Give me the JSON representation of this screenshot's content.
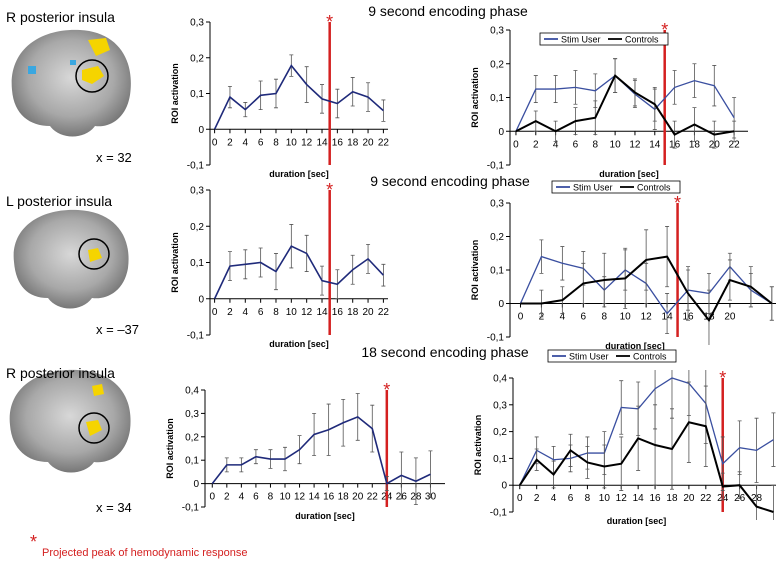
{
  "peak_marker": "*",
  "footnote": "Projected peak of hemodynamic response",
  "panels": [
    {
      "region": "R posterior insula",
      "coord": "x = 32"
    },
    {
      "region": "L posterior insula",
      "coord": "x = –37"
    },
    {
      "region": "R posterior insula",
      "coord": "x = 34"
    }
  ],
  "chart_data": [
    {
      "type": "line",
      "title": "9 second encoding phase",
      "xlabel": "duration [sec]",
      "ylabel": "ROI activation",
      "color": "#1f2a7a",
      "x": [
        0,
        2,
        4,
        6,
        8,
        10,
        12,
        14,
        16,
        18,
        20,
        22
      ],
      "values": [
        0,
        0.09,
        0.055,
        0.095,
        0.1,
        0.178,
        0.125,
        0.085,
        0.072,
        0.105,
        0.09,
        0.052
      ],
      "errors": [
        0,
        0.03,
        0.02,
        0.04,
        0.04,
        0.03,
        0.05,
        0.04,
        0.04,
        0.04,
        0.04,
        0.03
      ],
      "xlim": [
        -0.6,
        22.6
      ],
      "xticks": [
        0,
        2,
        4,
        6,
        8,
        10,
        12,
        14,
        16,
        18,
        20,
        22
      ],
      "ylim": [
        -0.1,
        0.3
      ],
      "yticks": [
        {
          "value": -0.1,
          "label": "-0,1"
        },
        0,
        {
          "value": 0.1,
          "label": "0,1"
        },
        {
          "value": 0.2,
          "label": "0,2"
        },
        {
          "value": 0.3,
          "label": "0,3"
        }
      ],
      "peak": 15
    },
    {
      "type": "line",
      "xlabel": "duration [sec]",
      "ylabel": "ROI activation",
      "legend": "top",
      "x": [
        0,
        2,
        4,
        6,
        8,
        10,
        12,
        14,
        16,
        18,
        20,
        22
      ],
      "series": [
        {
          "name": "Stim User",
          "color": "#3a4fa0",
          "values": [
            0,
            0.125,
            0.125,
            0.13,
            0.12,
            0.165,
            0.11,
            0.065,
            0.13,
            0.15,
            0.135,
            0.04
          ],
          "errors": [
            0,
            0.04,
            0.04,
            0.05,
            0.05,
            0.05,
            0.04,
            0.06,
            0.05,
            0.05,
            0.06,
            0.06
          ]
        },
        {
          "name": "Controls",
          "color": "#000000",
          "values": [
            0,
            0.03,
            0,
            0.03,
            0.04,
            0.165,
            0.115,
            0.08,
            -0.01,
            0.02,
            -0.01,
            0
          ],
          "errors": [
            0,
            0.03,
            0.03,
            0.04,
            0.05,
            0.05,
            0.04,
            0.05,
            0.04,
            0.05,
            0.04,
            0.03
          ]
        }
      ],
      "xlim": [
        -0.6,
        23.4
      ],
      "xticks": [
        0,
        2,
        4,
        6,
        8,
        10,
        12,
        14,
        16,
        18,
        20,
        22
      ],
      "ylim": [
        -0.1,
        0.3
      ],
      "yticks": [
        {
          "value": -0.1,
          "label": "-0,1"
        },
        0,
        {
          "value": 0.1,
          "label": "0,1"
        },
        {
          "value": 0.2,
          "label": "0,2"
        },
        {
          "value": 0.3,
          "label": "0,3"
        }
      ],
      "peak": 15
    },
    {
      "type": "line",
      "title": "9 second encoding phase",
      "xlabel": "duration [sec]",
      "ylabel": "ROI activation",
      "color": "#1f2a7a",
      "x": [
        0,
        2,
        4,
        6,
        8,
        10,
        12,
        14,
        16,
        18,
        20,
        22
      ],
      "values": [
        0,
        0.09,
        0.095,
        0.1,
        0.075,
        0.145,
        0.125,
        0.05,
        0.04,
        0.08,
        0.11,
        0.065
      ],
      "errors": [
        0,
        0.04,
        0.04,
        0.04,
        0.05,
        0.06,
        0.05,
        0.04,
        0.04,
        0.04,
        0.04,
        0.03
      ],
      "xlim": [
        -0.6,
        22.6
      ],
      "xticks": [
        0,
        2,
        4,
        6,
        8,
        10,
        12,
        14,
        16,
        18,
        20,
        22
      ],
      "ylim": [
        -0.1,
        0.3
      ],
      "yticks": [
        {
          "value": -0.1,
          "label": "-0,1"
        },
        0,
        {
          "value": 0.1,
          "label": "0,1"
        },
        {
          "value": 0.2,
          "label": "0,2"
        },
        {
          "value": 0.3,
          "label": "0,3"
        }
      ],
      "peak": 15
    },
    {
      "type": "line",
      "xlabel": "duration [sec]",
      "ylabel": "ROI activation",
      "legend": "top",
      "x": [
        0,
        2,
        4,
        6,
        8,
        10,
        12,
        14,
        16,
        18,
        20,
        22,
        24
      ],
      "series": [
        {
          "name": "Stim User",
          "color": "#3a4fa0",
          "values": [
            0,
            0.14,
            0.12,
            0.105,
            0.04,
            0.1,
            0.06,
            -0.03,
            0.04,
            0.03,
            0.11,
            0.04,
            0
          ],
          "errors": [
            0,
            0.05,
            0.05,
            0.05,
            0.04,
            0.06,
            0.06,
            0.06,
            0.06,
            0.06,
            0.04,
            0.05,
            0.05
          ]
        },
        {
          "name": "Controls",
          "color": "#000000",
          "values": [
            0,
            0,
            0.01,
            0.06,
            0.07,
            0.075,
            0.13,
            0.14,
            0.03,
            -0.05,
            0.07,
            0.05,
            0
          ],
          "errors": [
            0,
            0.04,
            0.04,
            0.06,
            0.08,
            0.09,
            0.09,
            0.09,
            0.08,
            0.09,
            0.06,
            0.06,
            0.05
          ]
        }
      ],
      "xlim": [
        -1,
        24.4
      ],
      "xticks": [
        0,
        2,
        4,
        6,
        8,
        10,
        12,
        14,
        16,
        18,
        20
      ],
      "ylim": [
        -0.1,
        0.3
      ],
      "yticks": [
        {
          "value": -0.1,
          "label": "-0,1"
        },
        0,
        {
          "value": 0.1,
          "label": "0,1"
        },
        {
          "value": 0.2,
          "label": "0,2"
        },
        {
          "value": 0.3,
          "label": "0,3"
        }
      ],
      "peak": 15
    },
    {
      "type": "line",
      "title": "18 second encoding phase",
      "xlabel": "duration [sec]",
      "ylabel": "ROI activation",
      "color": "#1f2a7a",
      "x": [
        0,
        2,
        4,
        6,
        8,
        10,
        12,
        14,
        16,
        18,
        20,
        22,
        24,
        26,
        28,
        30
      ],
      "values": [
        0,
        0.08,
        0.08,
        0.115,
        0.105,
        0.105,
        0.145,
        0.21,
        0.23,
        0.26,
        0.285,
        0.235,
        0,
        0.035,
        0.01,
        0.04
      ],
      "errors": [
        0,
        0.03,
        0.03,
        0.03,
        0.04,
        0.05,
        0.06,
        0.09,
        0.11,
        0.1,
        0.1,
        0.1,
        0.03,
        0.1,
        0.1,
        0.1
      ],
      "xlim": [
        -1,
        32
      ],
      "xticks": [
        0,
        2,
        4,
        6,
        8,
        10,
        12,
        14,
        16,
        18,
        20,
        22,
        24,
        26,
        28,
        30
      ],
      "ylim": [
        -0.1,
        0.4
      ],
      "yticks": [
        {
          "value": -0.1,
          "label": "-0,1"
        },
        0,
        {
          "value": 0.1,
          "label": "0,1"
        },
        {
          "value": 0.2,
          "label": "0,2"
        },
        {
          "value": 0.3,
          "label": "0,3"
        },
        {
          "value": 0.4,
          "label": "0,4"
        }
      ],
      "peak": 24
    },
    {
      "type": "line",
      "xlabel": "duration [sec]",
      "ylabel": "ROI activation",
      "legend": "top",
      "x": [
        0,
        2,
        4,
        6,
        8,
        10,
        12,
        14,
        16,
        18,
        20,
        22,
        24,
        26,
        28,
        30
      ],
      "series": [
        {
          "name": "Stim User",
          "color": "#3a4fa0",
          "values": [
            0,
            0.13,
            0.095,
            0.1,
            0.12,
            0.12,
            0.29,
            0.285,
            0.36,
            0.4,
            0.38,
            0.305,
            0.08,
            0.14,
            0.13,
            0.17
          ],
          "errors": [
            0,
            0.05,
            0.05,
            0.05,
            0.06,
            0.08,
            0.1,
            0.1,
            0.15,
            0.15,
            0.12,
            0.15,
            0.1,
            0.1,
            0.12,
            0.1
          ]
        },
        {
          "name": "Controls",
          "color": "#000000",
          "values": [
            0,
            0.095,
            0.04,
            0.13,
            0.085,
            0.07,
            0.08,
            0.175,
            0.15,
            0.135,
            0.235,
            0.22,
            -0.005,
            0,
            -0.08,
            -0.1
          ],
          "errors": [
            0,
            0.04,
            0.05,
            0.06,
            0.06,
            0.08,
            0.1,
            0.12,
            0.15,
            0.15,
            0.15,
            0.15,
            0.05,
            0.05,
            0.08,
            0.1
          ]
        }
      ],
      "xlim": [
        -0.8,
        30.3
      ],
      "xticks": [
        0,
        2,
        4,
        6,
        8,
        10,
        12,
        14,
        16,
        18,
        20,
        22,
        24,
        26,
        28
      ],
      "ylim": [
        -0.1,
        0.4
      ],
      "yticks": [
        {
          "value": -0.1,
          "label": "-0,1"
        },
        0,
        {
          "value": 0.1,
          "label": "0,1"
        },
        {
          "value": 0.2,
          "label": "0,2"
        },
        {
          "value": 0.3,
          "label": "0,3"
        },
        {
          "value": 0.4,
          "label": "0,4"
        }
      ],
      "peak": 24
    }
  ]
}
